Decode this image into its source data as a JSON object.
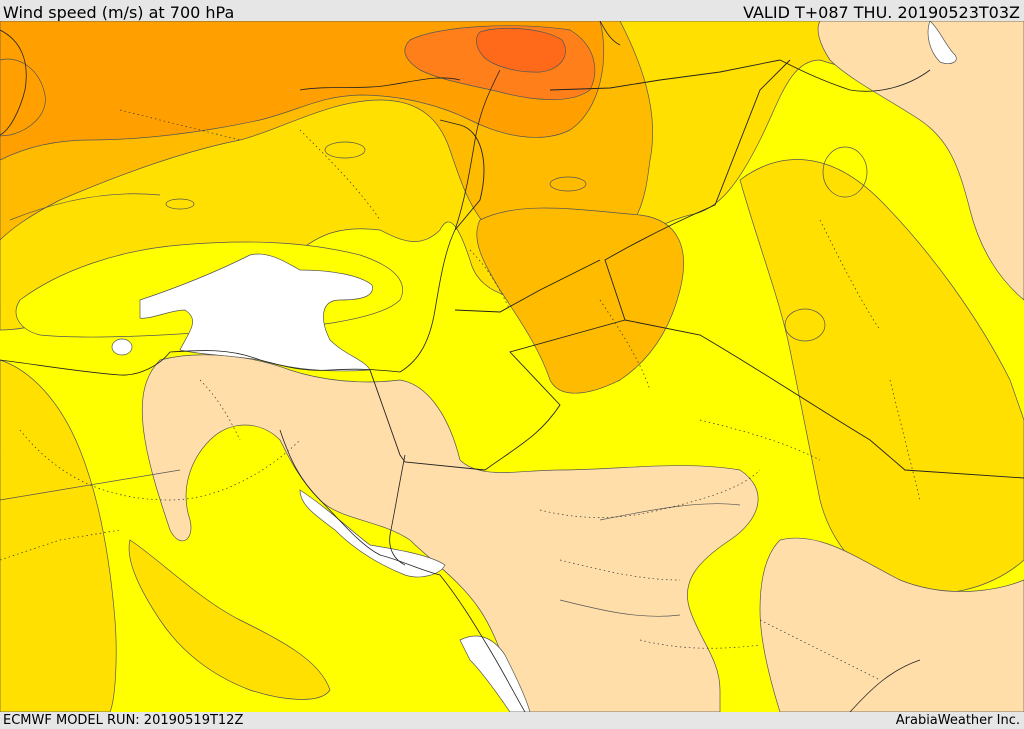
{
  "header": {
    "title": "Wind speed (m/s) at 700 hPa",
    "valid": "VALID T+087 THU. 20190523T03Z"
  },
  "footer": {
    "model_run": "ECMWF MODEL RUN: 20190519T12Z",
    "credit": "ArabiaWeather Inc."
  },
  "colors": {
    "band_below_threshold": "#ffffff",
    "band_1": "#ffdeaa",
    "band_2": "#ffff00",
    "band_3": "#ffe000",
    "band_4": "#ffbb00",
    "band_5": "#ffa000",
    "band_6": "#ff7f1a",
    "band_7": "#ff6a1a"
  }
}
